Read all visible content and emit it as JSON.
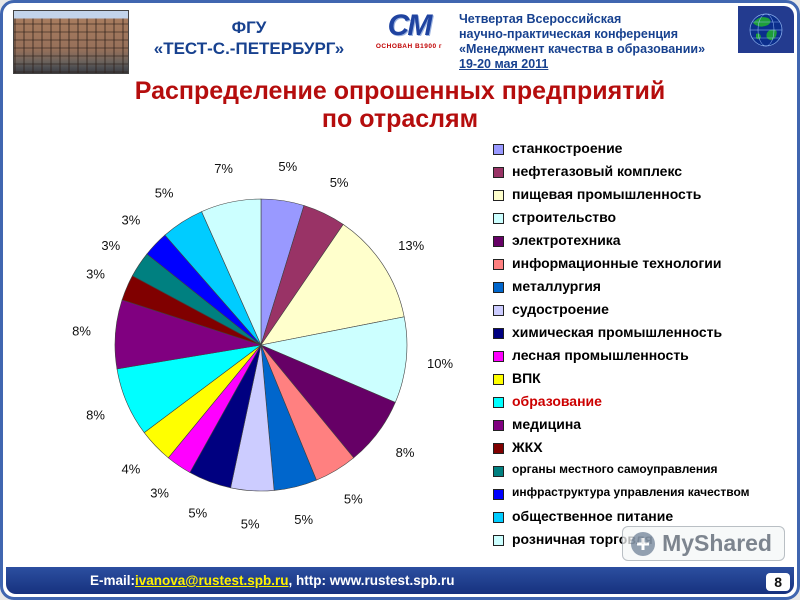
{
  "header": {
    "org_line1": "ФГУ",
    "org_line2": "«ТЕСТ-С.-ПЕТЕРБУРГ»",
    "logo_text": "СМ",
    "logo_caption": "ОСНОВАН В1900 г",
    "conference_line1": "Четвертая Всероссийская",
    "conference_line2": "научно-практическая конференция",
    "conference_line3": "«Менеджмент качества в образовании»",
    "conference_line4": "19-20 мая 2011"
  },
  "title": {
    "line1": "Распределение опрошенных предприятий",
    "line2": "по отраслям"
  },
  "chart_data": {
    "type": "pie",
    "title": "Распределение опрошенных предприятий по отраслям",
    "legend_position": "right",
    "start_angle_deg": 0,
    "direction": "clockwise",
    "slices": [
      {
        "label": "станкостроение",
        "value": 5,
        "color": "#9999FF"
      },
      {
        "label": "нефтегазовый комплекс",
        "value": 5,
        "color": "#993366"
      },
      {
        "label": "пищевая промышленность",
        "value": 13,
        "color": "#FFFFCC"
      },
      {
        "label": "строительство",
        "value": 10,
        "color": "#CCFFFF"
      },
      {
        "label": "электротехника",
        "value": 8,
        "color": "#660066"
      },
      {
        "label": "информационные технологии",
        "value": 5,
        "color": "#FF8080"
      },
      {
        "label": "металлургия",
        "value": 5,
        "color": "#0066CC"
      },
      {
        "label": "судостроение",
        "value": 5,
        "color": "#CCCCFF"
      },
      {
        "label": "химическая промышленность",
        "value": 5,
        "color": "#000080"
      },
      {
        "label": "лесная промышленность",
        "value": 3,
        "color": "#FF00FF"
      },
      {
        "label": "ВПК",
        "value": 4,
        "color": "#FFFF00"
      },
      {
        "label": "образование",
        "value": 8,
        "color": "#00FFFF",
        "label_color": "#CC0000"
      },
      {
        "label": "медицина",
        "value": 8,
        "color": "#800080"
      },
      {
        "label": "ЖКХ",
        "value": 3,
        "color": "#800000"
      },
      {
        "label": "органы местного самоуправления",
        "value": 3,
        "color": "#008080"
      },
      {
        "label": "инфраструктура управления качеством",
        "value": 3,
        "color": "#0000FF"
      },
      {
        "label": "общественное питание",
        "value": 5,
        "color": "#00CCFF"
      },
      {
        "label": "розничная торговля",
        "value": 7,
        "color": "#CCFFFF"
      }
    ]
  },
  "footer": {
    "email_label": "E-mail: ",
    "email_link": "ivanova@rustest.spb.ru",
    "website": ", http: www.rustest.spb.ru",
    "page_number": "8"
  },
  "watermark": {
    "text": "MyShared"
  }
}
